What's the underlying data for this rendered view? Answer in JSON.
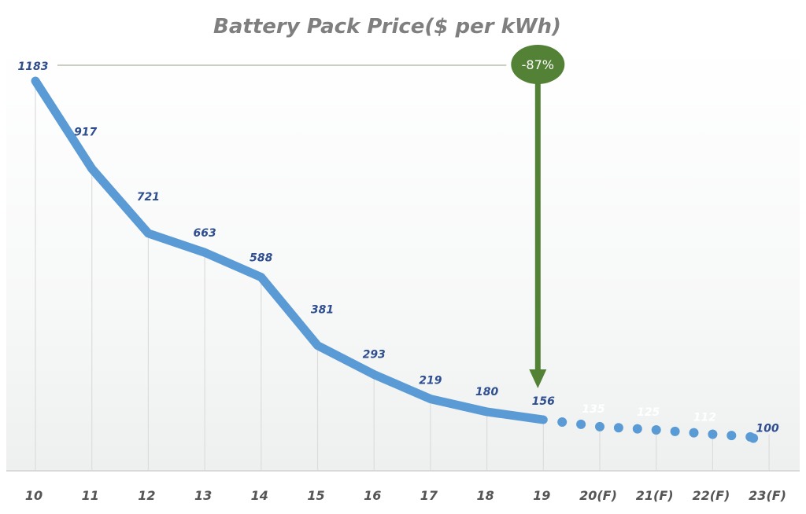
{
  "chart_data": {
    "type": "line",
    "title": "Battery Pack Price($ per kWh)",
    "xlabel": "",
    "ylabel": "",
    "categories": [
      "10",
      "11",
      "12",
      "13",
      "14",
      "15",
      "16",
      "17",
      "18",
      "19",
      "20(F)",
      "21(F)",
      "22(F)",
      "23(F)"
    ],
    "values": [
      1183,
      917,
      721,
      663,
      588,
      381,
      293,
      219,
      180,
      156,
      135,
      125,
      112,
      100
    ],
    "actual_through": "19",
    "forecast_style": "dotted",
    "ylim": [
      0,
      1200
    ],
    "grid": "vertical drop lines",
    "legend": "none",
    "annotation": {
      "text": "-87%",
      "from": "10",
      "to": "19"
    },
    "colors": {
      "line": "#5b9bd5",
      "labels": "#2f4e8f",
      "forecast_labels": "#ffffff",
      "annotation": "#538135",
      "title": "#7f7f7f"
    }
  }
}
